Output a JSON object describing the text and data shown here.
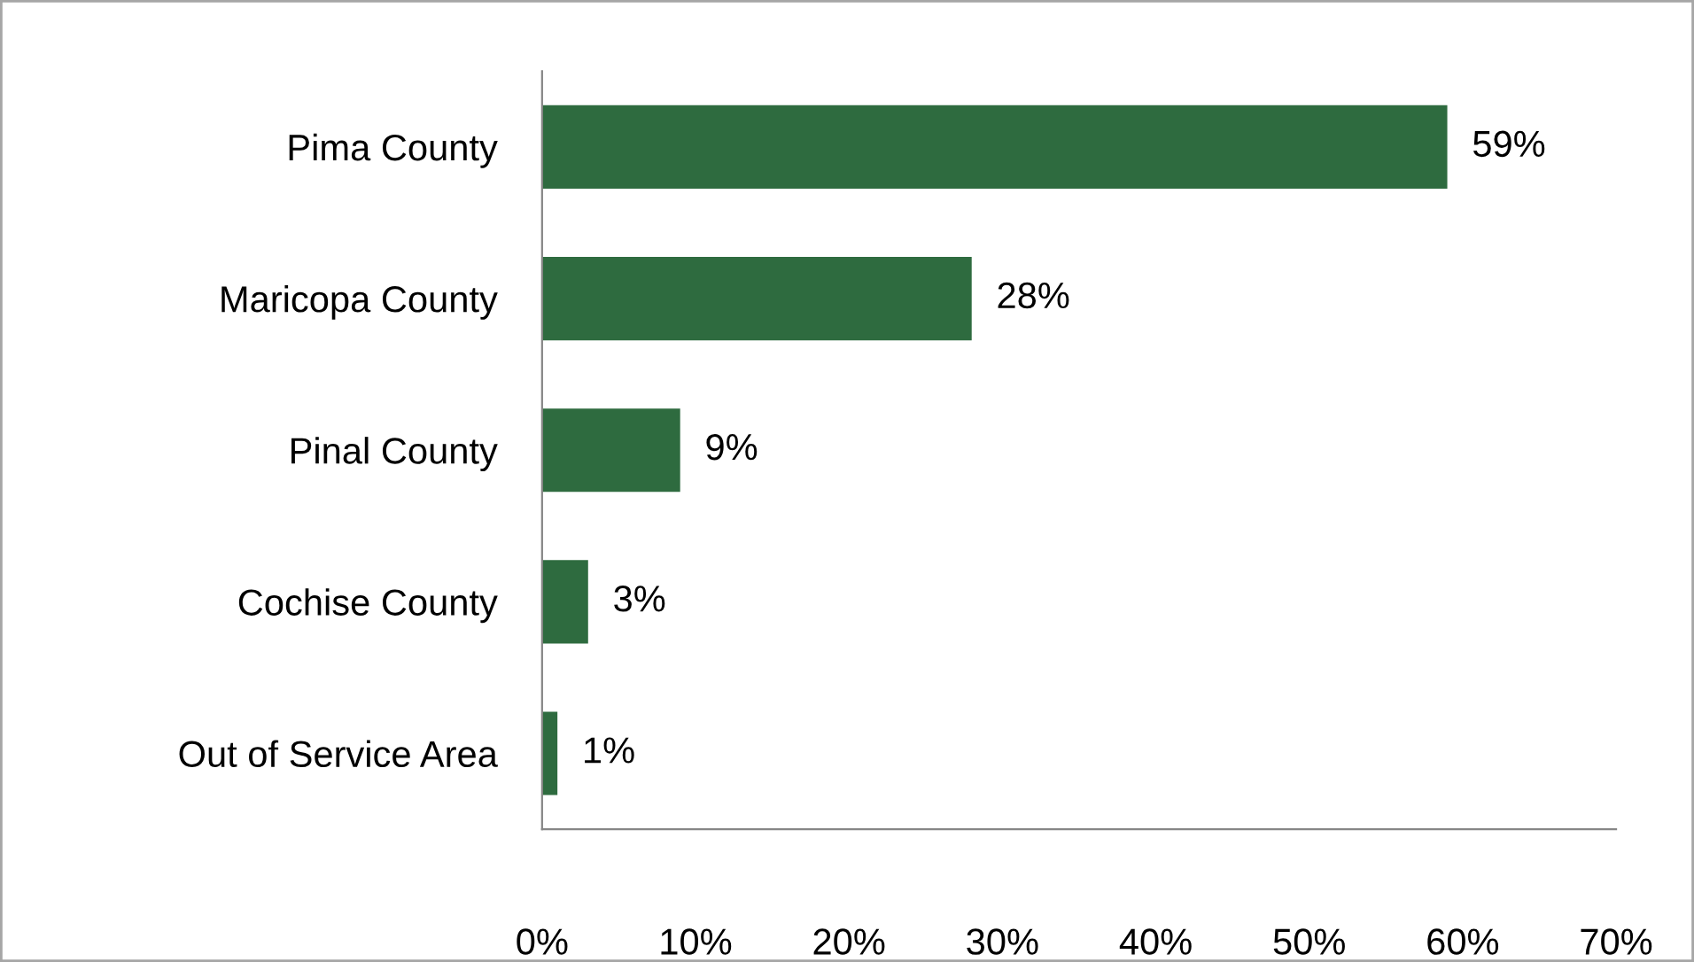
{
  "chart_data": {
    "type": "bar",
    "orientation": "horizontal",
    "categories": [
      "Pima County",
      "Maricopa County",
      "Pinal County",
      "Cochise County",
      "Out of Service Area"
    ],
    "values": [
      59,
      28,
      9,
      3,
      1
    ],
    "value_labels": [
      "59%",
      "28%",
      "9%",
      "3%",
      "1%"
    ],
    "color": "#2e6b3f",
    "xlim": [
      0,
      70
    ],
    "xticks": [
      {
        "value": 0,
        "label": "0%"
      },
      {
        "value": 10,
        "label": "10%"
      },
      {
        "value": 20,
        "label": "20%"
      },
      {
        "value": 30,
        "label": "30%"
      },
      {
        "value": 40,
        "label": "40%"
      },
      {
        "value": 50,
        "label": "50%"
      },
      {
        "value": 60,
        "label": "60%"
      },
      {
        "value": 70,
        "label": "70%"
      }
    ],
    "grid": false,
    "legend": false
  }
}
